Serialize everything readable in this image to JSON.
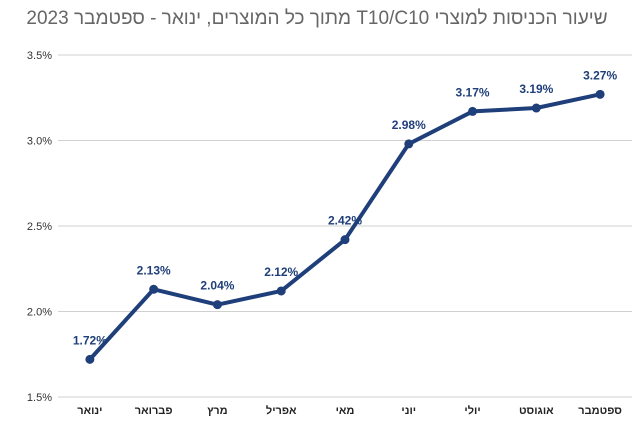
{
  "chart_data": {
    "type": "line",
    "title": "שיעור הכניסות למוצרי T10/C10 מתוך כל המוצרים, ינואר - ספטמבר 2023",
    "categories": [
      "ינואר",
      "פברואר",
      "מרץ",
      "אפריל",
      "מאי",
      "יוני",
      "יולי",
      "אוגוסט",
      "ספטמבר"
    ],
    "series": [
      {
        "values": [
          1.72,
          2.13,
          2.04,
          2.12,
          2.42,
          2.98,
          3.17,
          3.19,
          3.27
        ],
        "data_labels": [
          "1.72%",
          "2.13%",
          "2.04%",
          "2.12%",
          "2.42%",
          "2.98%",
          "3.17%",
          "3.19%",
          "3.27%"
        ],
        "color": "#1f3f7a"
      }
    ],
    "yticks": [
      "1.5%",
      "2.0%",
      "2.5%",
      "3.0%",
      "3.5%"
    ],
    "ylim": [
      1.5,
      3.5
    ],
    "grid": true,
    "xlabel": "",
    "ylabel": ""
  }
}
